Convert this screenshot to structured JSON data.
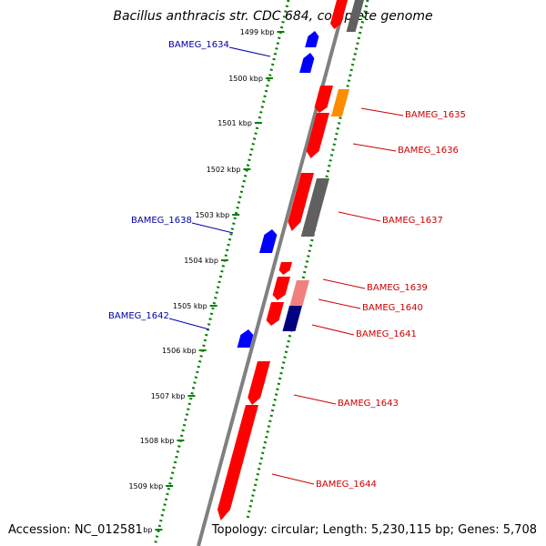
{
  "title": "Bacillus anthracis str. CDC 684, complete genome",
  "accession": "Accession: NC_012581",
  "summary": "Topology: circular; Length: 5,230,115 bp; Genes: 5,708",
  "colors": {
    "backbone": "#808080",
    "ruler_dots": "#008000",
    "forward_gene": "#ff0000",
    "reverse_gene": "#0000ff",
    "light_red": "#f08080",
    "orange": "#ff8c00",
    "grey": "#606060",
    "navy": "#000080",
    "forward_label": "#cc0000",
    "reverse_label": "#0000aa"
  },
  "ruler": {
    "unit": "kbp",
    "ticks": [
      "1499 kbp",
      "1500 kbp",
      "1501 kbp",
      "1502 kbp",
      "1503 kbp",
      "1504 kbp",
      "1505 kbp",
      "1506 kbp",
      "1507 kbp",
      "1508 kbp",
      "1509 kbp",
      "kbp"
    ]
  },
  "features": [
    {
      "label": "BAMEG_1634",
      "strand": "reverse",
      "color": "#0000ff"
    },
    {
      "label": "BAMEG_1635",
      "strand": "forward",
      "color": "#ff0000"
    },
    {
      "label": "BAMEG_1636",
      "strand": "forward",
      "color": "#ff0000"
    },
    {
      "label": "BAMEG_1637",
      "strand": "forward",
      "color": "#ff0000"
    },
    {
      "label": "BAMEG_1638",
      "strand": "reverse",
      "color": "#0000ff"
    },
    {
      "label": "BAMEG_1639",
      "strand": "forward",
      "color": "#ff0000"
    },
    {
      "label": "BAMEG_1640",
      "strand": "forward",
      "color": "#ff0000"
    },
    {
      "label": "BAMEG_1641",
      "strand": "forward",
      "color": "#ff0000"
    },
    {
      "label": "BAMEG_1642",
      "strand": "reverse",
      "color": "#0000ff"
    },
    {
      "label": "BAMEG_1643",
      "strand": "forward",
      "color": "#ff0000"
    },
    {
      "label": "BAMEG_1644",
      "strand": "forward",
      "color": "#ff0000"
    }
  ]
}
